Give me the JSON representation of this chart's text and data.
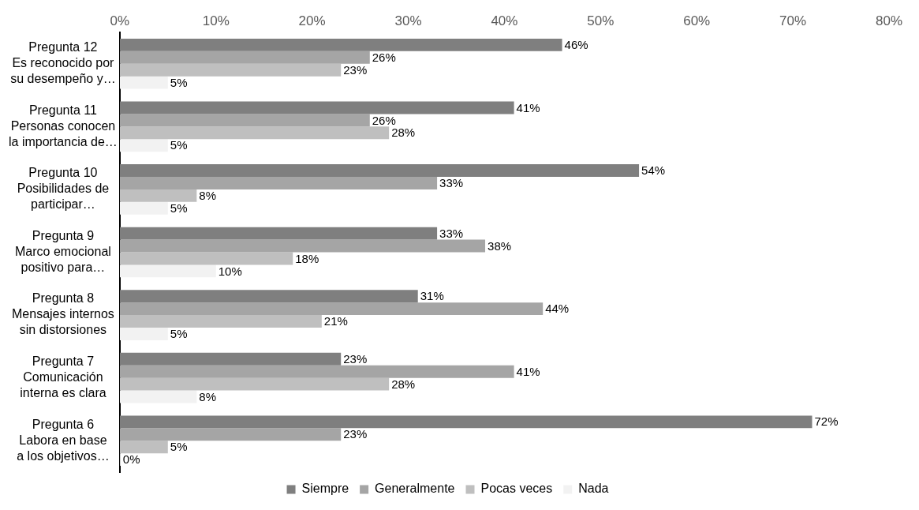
{
  "chart_data": {
    "type": "bar",
    "orientation": "horizontal",
    "categories": [
      "Pregunta 12\nEs reconocido por\nsu desempeño y…",
      "Pregunta 11\nPersonas conocen\nla importancia de…",
      "Pregunta 10\nPosibilidades de\nparticipar…",
      "Pregunta 9\nMarco emocional\npositivo para…",
      "Pregunta 8\nMensajes internos\nsin distorsiones",
      "Pregunta 7\nComunicación\ninterna es clara",
      "Pregunta 6\nLabora en base\na los objetivos…"
    ],
    "series": [
      {
        "name": "Siempre",
        "color": "#7f7f7f",
        "values": [
          46,
          41,
          54,
          33,
          31,
          23,
          72
        ],
        "value_labels": [
          "46%",
          "41%",
          "54%",
          "33%",
          "31%",
          "23%",
          "72%"
        ]
      },
      {
        "name": "Generalmente",
        "color": "#a5a5a5",
        "values": [
          26,
          26,
          33,
          38,
          44,
          41,
          23
        ],
        "value_labels": [
          "26%",
          "26%",
          "33%",
          "38%",
          "44%",
          "41%",
          "23%"
        ]
      },
      {
        "name": "Pocas veces",
        "color": "#bfbfbf",
        "values": [
          23,
          28,
          8,
          18,
          21,
          28,
          5
        ],
        "value_labels": [
          "23%",
          "28%",
          "8%",
          "18%",
          "21%",
          "28%",
          "5%"
        ]
      },
      {
        "name": "Nada",
        "color": "#f2f2f2",
        "values": [
          5,
          5,
          5,
          10,
          5,
          8,
          0
        ],
        "value_labels": [
          "5%",
          "5%",
          "5%",
          "10%",
          "5%",
          "8%",
          "0%"
        ]
      }
    ],
    "xlim": [
      0,
      80
    ],
    "xticks": [
      {
        "value": 0,
        "label": "0%"
      },
      {
        "value": 10,
        "label": "10%"
      },
      {
        "value": 20,
        "label": "20%"
      },
      {
        "value": 30,
        "label": "30%"
      },
      {
        "value": 40,
        "label": "40%"
      },
      {
        "value": 50,
        "label": "50%"
      },
      {
        "value": 60,
        "label": "60%"
      },
      {
        "value": 70,
        "label": "70%"
      },
      {
        "value": 80,
        "label": "80%"
      }
    ],
    "grid": false,
    "legend": "bottom"
  }
}
